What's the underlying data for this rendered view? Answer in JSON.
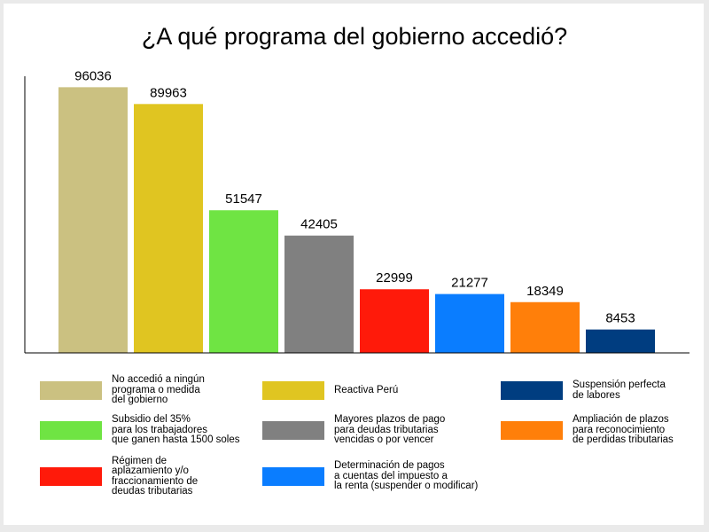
{
  "chart_data": {
    "type": "bar",
    "title": "¿A qué programa del gobierno accedió?",
    "xlabel": "",
    "ylabel": "",
    "ylim": [
      0,
      100000
    ],
    "grid": false,
    "legend_position": "bottom",
    "series": [
      {
        "name": "No accedió a ningún\nprograma o medida\ndel gobierno",
        "value": 96036,
        "color": "#cbc181"
      },
      {
        "name": "Reactiva Perú",
        "value": 89963,
        "color": "#e0c521"
      },
      {
        "name": "Subsidio del 35%\npara los trabajadores\nque ganen hasta 1500 soles",
        "value": 51547,
        "color": "#6fe443"
      },
      {
        "name": "Mayores plazos de pago\npara deudas tributarias\nvencidas o por vencer",
        "value": 42405,
        "color": "#808080"
      },
      {
        "name": "Régimen de\naplazamiento y/o\nfraccionamiento de\ndeudas tributarias",
        "value": 22999,
        "color": "#ff1a0a"
      },
      {
        "name": "Determinación de pagos\na cuentas del impuesto a\nla renta (suspender o modificar)",
        "value": 21277,
        "color": "#0a7dff"
      },
      {
        "name": "Ampliación de plazos\npara reconocimiento\nde perdidas tributarias",
        "value": 18349,
        "color": "#ff7f0a"
      },
      {
        "name": "Suspensión perfecta\nde labores",
        "value": 8453,
        "color": "#003d80"
      }
    ]
  }
}
